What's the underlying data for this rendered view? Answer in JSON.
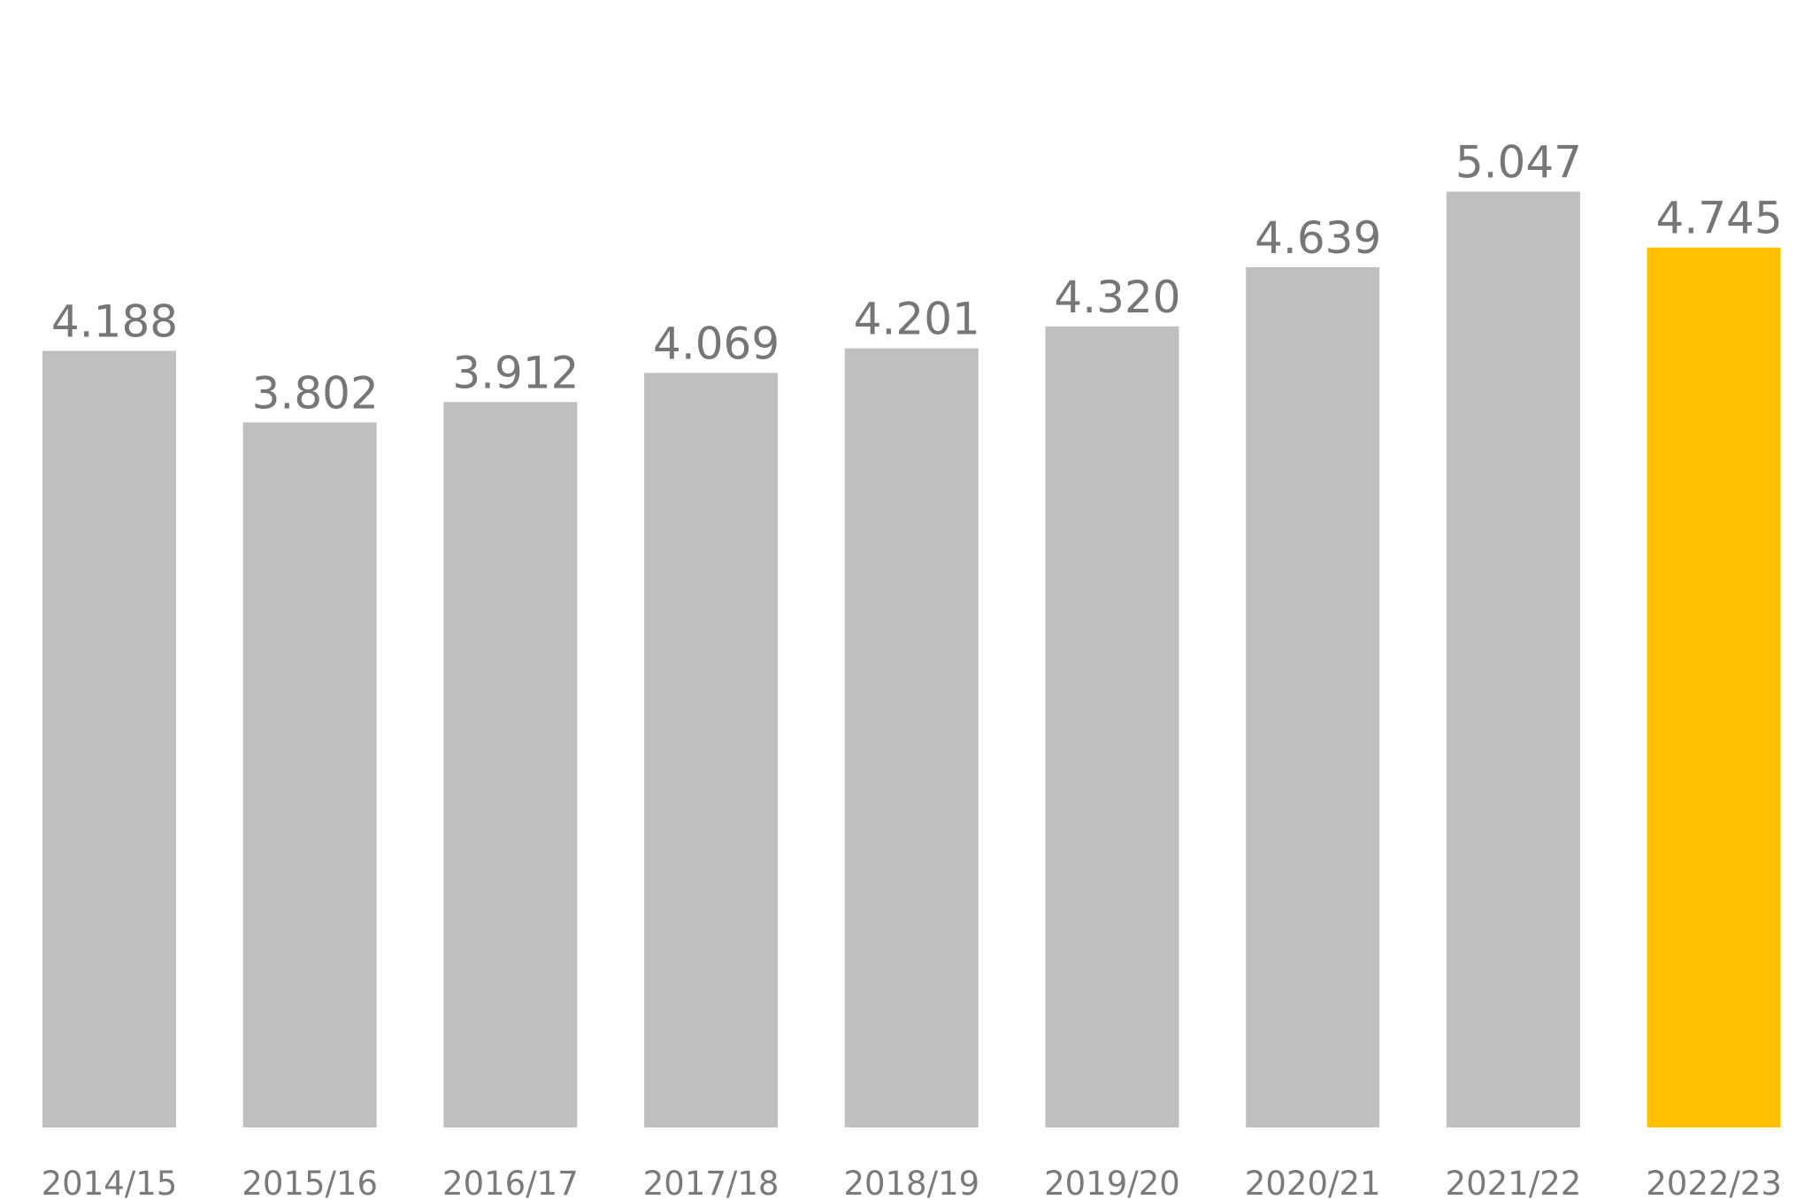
{
  "chart_data": {
    "type": "bar",
    "categories": [
      "2014/15",
      "2015/16",
      "2016/17",
      "2017/18",
      "2018/19",
      "2019/20",
      "2020/21",
      "2021/22",
      "2022/23"
    ],
    "values": [
      4.188,
      3.802,
      3.912,
      4.069,
      4.201,
      4.32,
      4.639,
      5.047,
      4.745
    ],
    "value_labels": [
      "4.188",
      "3.802",
      "3.912",
      "4.069",
      "4.201",
      "4.320",
      "4.639",
      "5.047",
      "4.745"
    ],
    "title": "",
    "xlabel": "",
    "ylabel": "",
    "ylim": [
      0,
      6.08
    ],
    "grid": false,
    "legend": "none",
    "colors": {
      "default_bar": "#bfbfbf",
      "highlight_bar": "#ffc000",
      "label_text": "#767676"
    },
    "highlight_index": 8
  }
}
